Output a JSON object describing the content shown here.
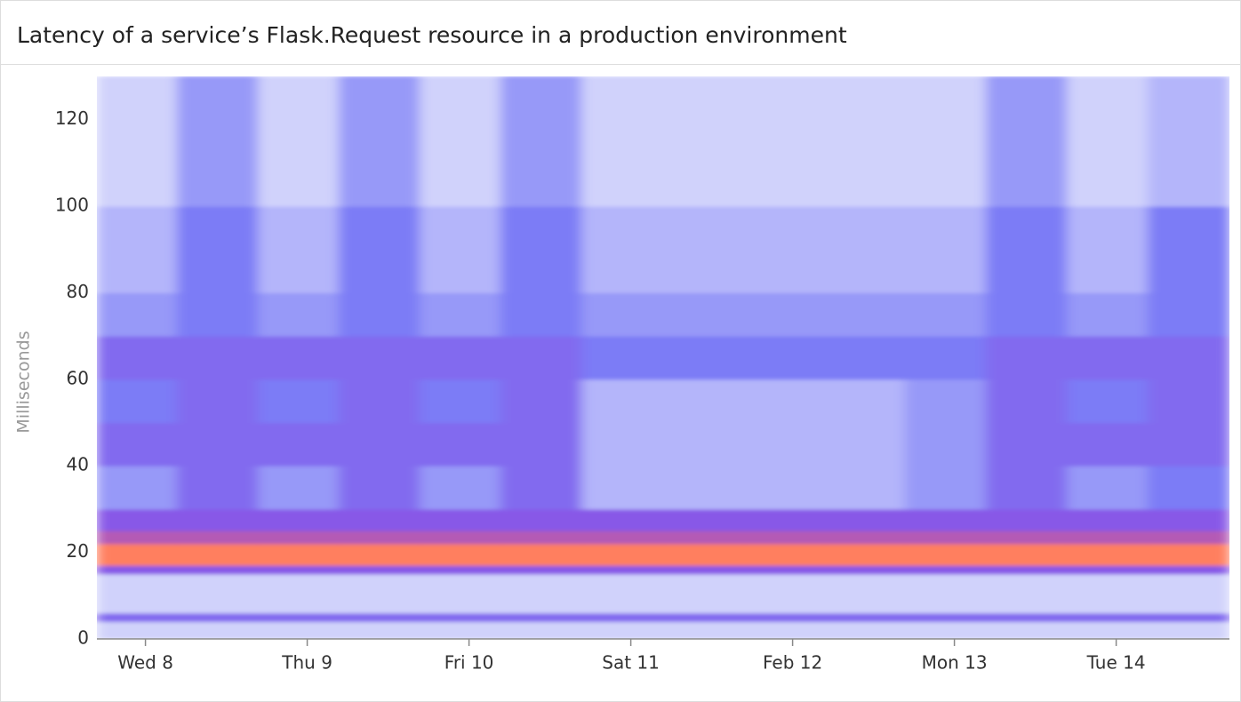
{
  "chart_data": {
    "type": "heatmap",
    "title": "Latency of a service’s Flask.Request resource in a production environment",
    "y_label": "Milliseconds",
    "xlim": [
      -0.3,
      6.7
    ],
    "xticks": [
      {
        "value": 0,
        "label": "Wed 8"
      },
      {
        "value": 1,
        "label": "Thu 9"
      },
      {
        "value": 2,
        "label": "Fri 10"
      },
      {
        "value": 3,
        "label": "Sat 11"
      },
      {
        "value": 4,
        "label": "Feb 12"
      },
      {
        "value": 5,
        "label": "Mon 13"
      },
      {
        "value": 6,
        "label": "Tue 14"
      }
    ],
    "ylim": [
      0,
      130
    ],
    "yticks": [
      0,
      20,
      40,
      60,
      80,
      100,
      120
    ],
    "x_bins": [
      -0.3,
      0.2,
      0.7,
      1.2,
      1.7,
      2.2,
      2.7,
      3.2,
      3.7,
      4.2,
      4.7,
      5.2,
      5.7,
      6.2,
      6.7
    ],
    "y_bins": [
      0,
      4,
      6,
      15,
      17,
      22,
      25,
      30,
      40,
      50,
      60,
      70,
      80,
      100,
      130
    ],
    "zlim": [
      0,
      10
    ],
    "colorscale": [
      [
        0,
        "#eceefd"
      ],
      [
        0.4,
        "#7b7cf6"
      ],
      [
        0.7,
        "#8f48e0"
      ],
      [
        1,
        "#ff7f5f"
      ]
    ],
    "z": [
      [
        1,
        1,
        1,
        1,
        1,
        1,
        1,
        1,
        1,
        1,
        1,
        1,
        1,
        1
      ],
      [
        5,
        5,
        5,
        5,
        5,
        5,
        5,
        5,
        5,
        5,
        5,
        5,
        5,
        5
      ],
      [
        1,
        1,
        1,
        1,
        1,
        1,
        1,
        1,
        1,
        1,
        1,
        1,
        1,
        1
      ],
      [
        6,
        6,
        6,
        6,
        6,
        6,
        6,
        6,
        6,
        6,
        6,
        6,
        6,
        6
      ],
      [
        10,
        10,
        10,
        10,
        10,
        10,
        10,
        10,
        10,
        10,
        10,
        10,
        10,
        10
      ],
      [
        8,
        8,
        8,
        8,
        8,
        8,
        8,
        8,
        8,
        8,
        8,
        8,
        8,
        8
      ],
      [
        6,
        6,
        6,
        6,
        6,
        6,
        6,
        6,
        6,
        6,
        6,
        6,
        6,
        6
      ],
      [
        3,
        5,
        3,
        5,
        3,
        5,
        2,
        2,
        2,
        2,
        3,
        5,
        3,
        4
      ],
      [
        5,
        5,
        5,
        5,
        5,
        5,
        2,
        2,
        2,
        2,
        3,
        5,
        5,
        5
      ],
      [
        4,
        5,
        4,
        5,
        4,
        5,
        2,
        2,
        2,
        2,
        3,
        5,
        4,
        5
      ],
      [
        5,
        5,
        5,
        5,
        5,
        5,
        4,
        4,
        4,
        4,
        4,
        5,
        5,
        5
      ],
      [
        3,
        4,
        3,
        4,
        3,
        4,
        3,
        3,
        3,
        3,
        3,
        4,
        3,
        4
      ],
      [
        2,
        4,
        2,
        4,
        2,
        4,
        2,
        2,
        2,
        2,
        2,
        4,
        2,
        4
      ],
      [
        1,
        3,
        1,
        3,
        1,
        3,
        1,
        1,
        1,
        1,
        1,
        3,
        1,
        2
      ]
    ]
  }
}
